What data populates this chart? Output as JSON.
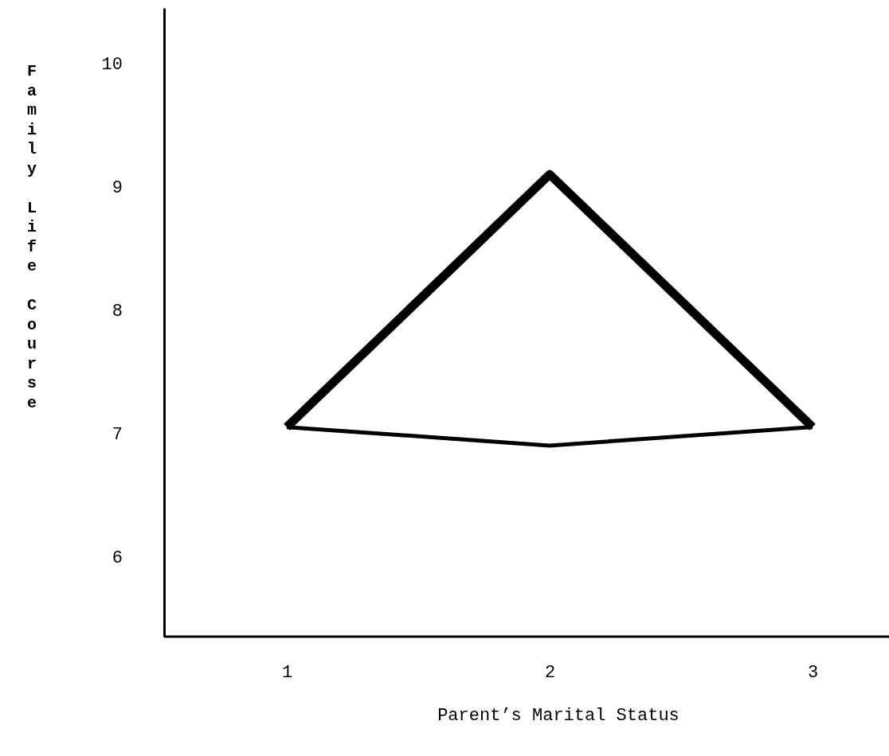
{
  "chart_data": {
    "type": "line",
    "xlabel": "Parent’s Marital Status",
    "ylabel": "Family Life Course",
    "categories": [
      "1",
      "2",
      "3"
    ],
    "series": [
      {
        "color": "#000000",
        "values": [
          7.05,
          9.1,
          7.05
        ]
      },
      {
        "color": "#000000",
        "values": [
          7.05,
          6.9,
          7.05
        ]
      }
    ],
    "ylim": [
      5.35,
      10.45
    ],
    "yticks": [
      6,
      7,
      8,
      9,
      10
    ],
    "grid": false,
    "marker": "none",
    "line_style": "solid"
  }
}
